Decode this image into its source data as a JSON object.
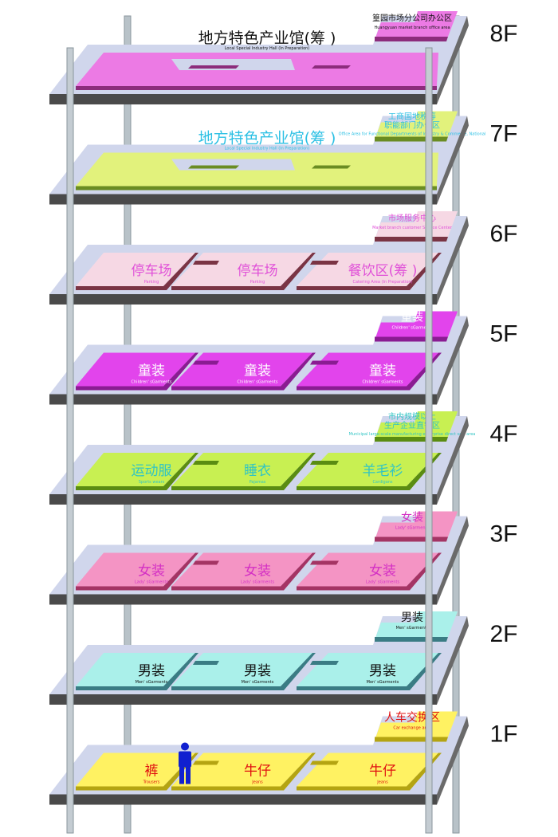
{
  "floors": [
    {
      "level": "8F",
      "color": "#ec7ae4",
      "edge": "#8c2c7c",
      "text": "#111111",
      "zones": [
        {
          "cn": "地方特色产业馆(筹 )",
          "en": "Local Special Industry Hall (In Preparation)"
        }
      ],
      "corner": {
        "cn": "篁园市场分公司办公区",
        "en": "Huangyuan market branch office area"
      }
    },
    {
      "level": "7F",
      "color": "#e2f27c",
      "edge": "#6a8c22",
      "text": "#2cc0e4",
      "zones": [
        {
          "cn": "地方特色产业馆(筹 )",
          "en": "Local Special Industry Hall (In Preparation)"
        }
      ],
      "corner": {
        "cn": "工商国地税等 职能部门办公区",
        "en": "Office Area for Functional Departments of Industry & Commerce, National"
      }
    },
    {
      "level": "6F",
      "color": "#f6d8e4",
      "edge": "#7a3444",
      "text": "#e050d8",
      "zones": [
        {
          "cn": "停车场",
          "en": "Parking"
        },
        {
          "cn": "停车场",
          "en": "Parking"
        },
        {
          "cn": "餐饮区(筹 )",
          "en": "Catering Area (In Preparation)"
        }
      ],
      "corner": {
        "cn": "市场服务中心",
        "en": "Market branch customer Service Center"
      }
    },
    {
      "level": "5F",
      "color": "#e244ec",
      "edge": "#8a1c92",
      "text": "#ffffff",
      "zones": [
        {
          "cn": "童装",
          "en": "Children' sGarments"
        },
        {
          "cn": "童装",
          "en": "Children' sGarments"
        },
        {
          "cn": "童装",
          "en": "Children' sGarments"
        }
      ],
      "corner": {
        "cn": "童装",
        "en": "Children' sGarments"
      }
    },
    {
      "level": "4F",
      "color": "#c8f052",
      "edge": "#5a8c12",
      "text": "#30c4c4",
      "zones": [
        {
          "cn": "运动服",
          "en": "Sports wears"
        },
        {
          "cn": "睡衣",
          "en": "Pajamas"
        },
        {
          "cn": "羊毛衫",
          "en": "Cardigans"
        }
      ],
      "corner": {
        "cn": "市内规模以上 生产企业直销区",
        "en": "Municipal large-scale manufacturing enterprise direct sale area"
      }
    },
    {
      "level": "3F",
      "color": "#f494c4",
      "edge": "#a43464",
      "text": "#d430c4",
      "zones": [
        {
          "cn": "女装",
          "en": "Lady' sGarments"
        },
        {
          "cn": "女装",
          "en": "Lady' sGarments"
        },
        {
          "cn": "女装",
          "en": "Lady' sGarments"
        }
      ],
      "corner": {
        "cn": "女装",
        "en": "Lady' sGarments"
      }
    },
    {
      "level": "2F",
      "color": "#aaf0ea",
      "edge": "#3a7c84",
      "text": "#111111",
      "zones": [
        {
          "cn": "男装",
          "en": "Men' sGarments"
        },
        {
          "cn": "男装",
          "en": "Men' sGarments"
        },
        {
          "cn": "男装",
          "en": "Men' sGarments"
        }
      ],
      "corner": {
        "cn": "男装",
        "en": "Men' sGarments"
      }
    },
    {
      "level": "1F",
      "color": "#fff262",
      "edge": "#b4a412",
      "text": "#e01010",
      "zones": [
        {
          "cn": "裤",
          "en": "Trousers"
        },
        {
          "cn": "牛仔",
          "en": "Jeans"
        },
        {
          "cn": "牛仔",
          "en": "Jeans"
        }
      ],
      "corner": {
        "cn": "人车交换区",
        "en": "Car exchange area"
      }
    }
  ],
  "person_icon_color": "#1020d0",
  "slab_color": "#d0d6ec",
  "slab_edge": "#4a4a4a"
}
